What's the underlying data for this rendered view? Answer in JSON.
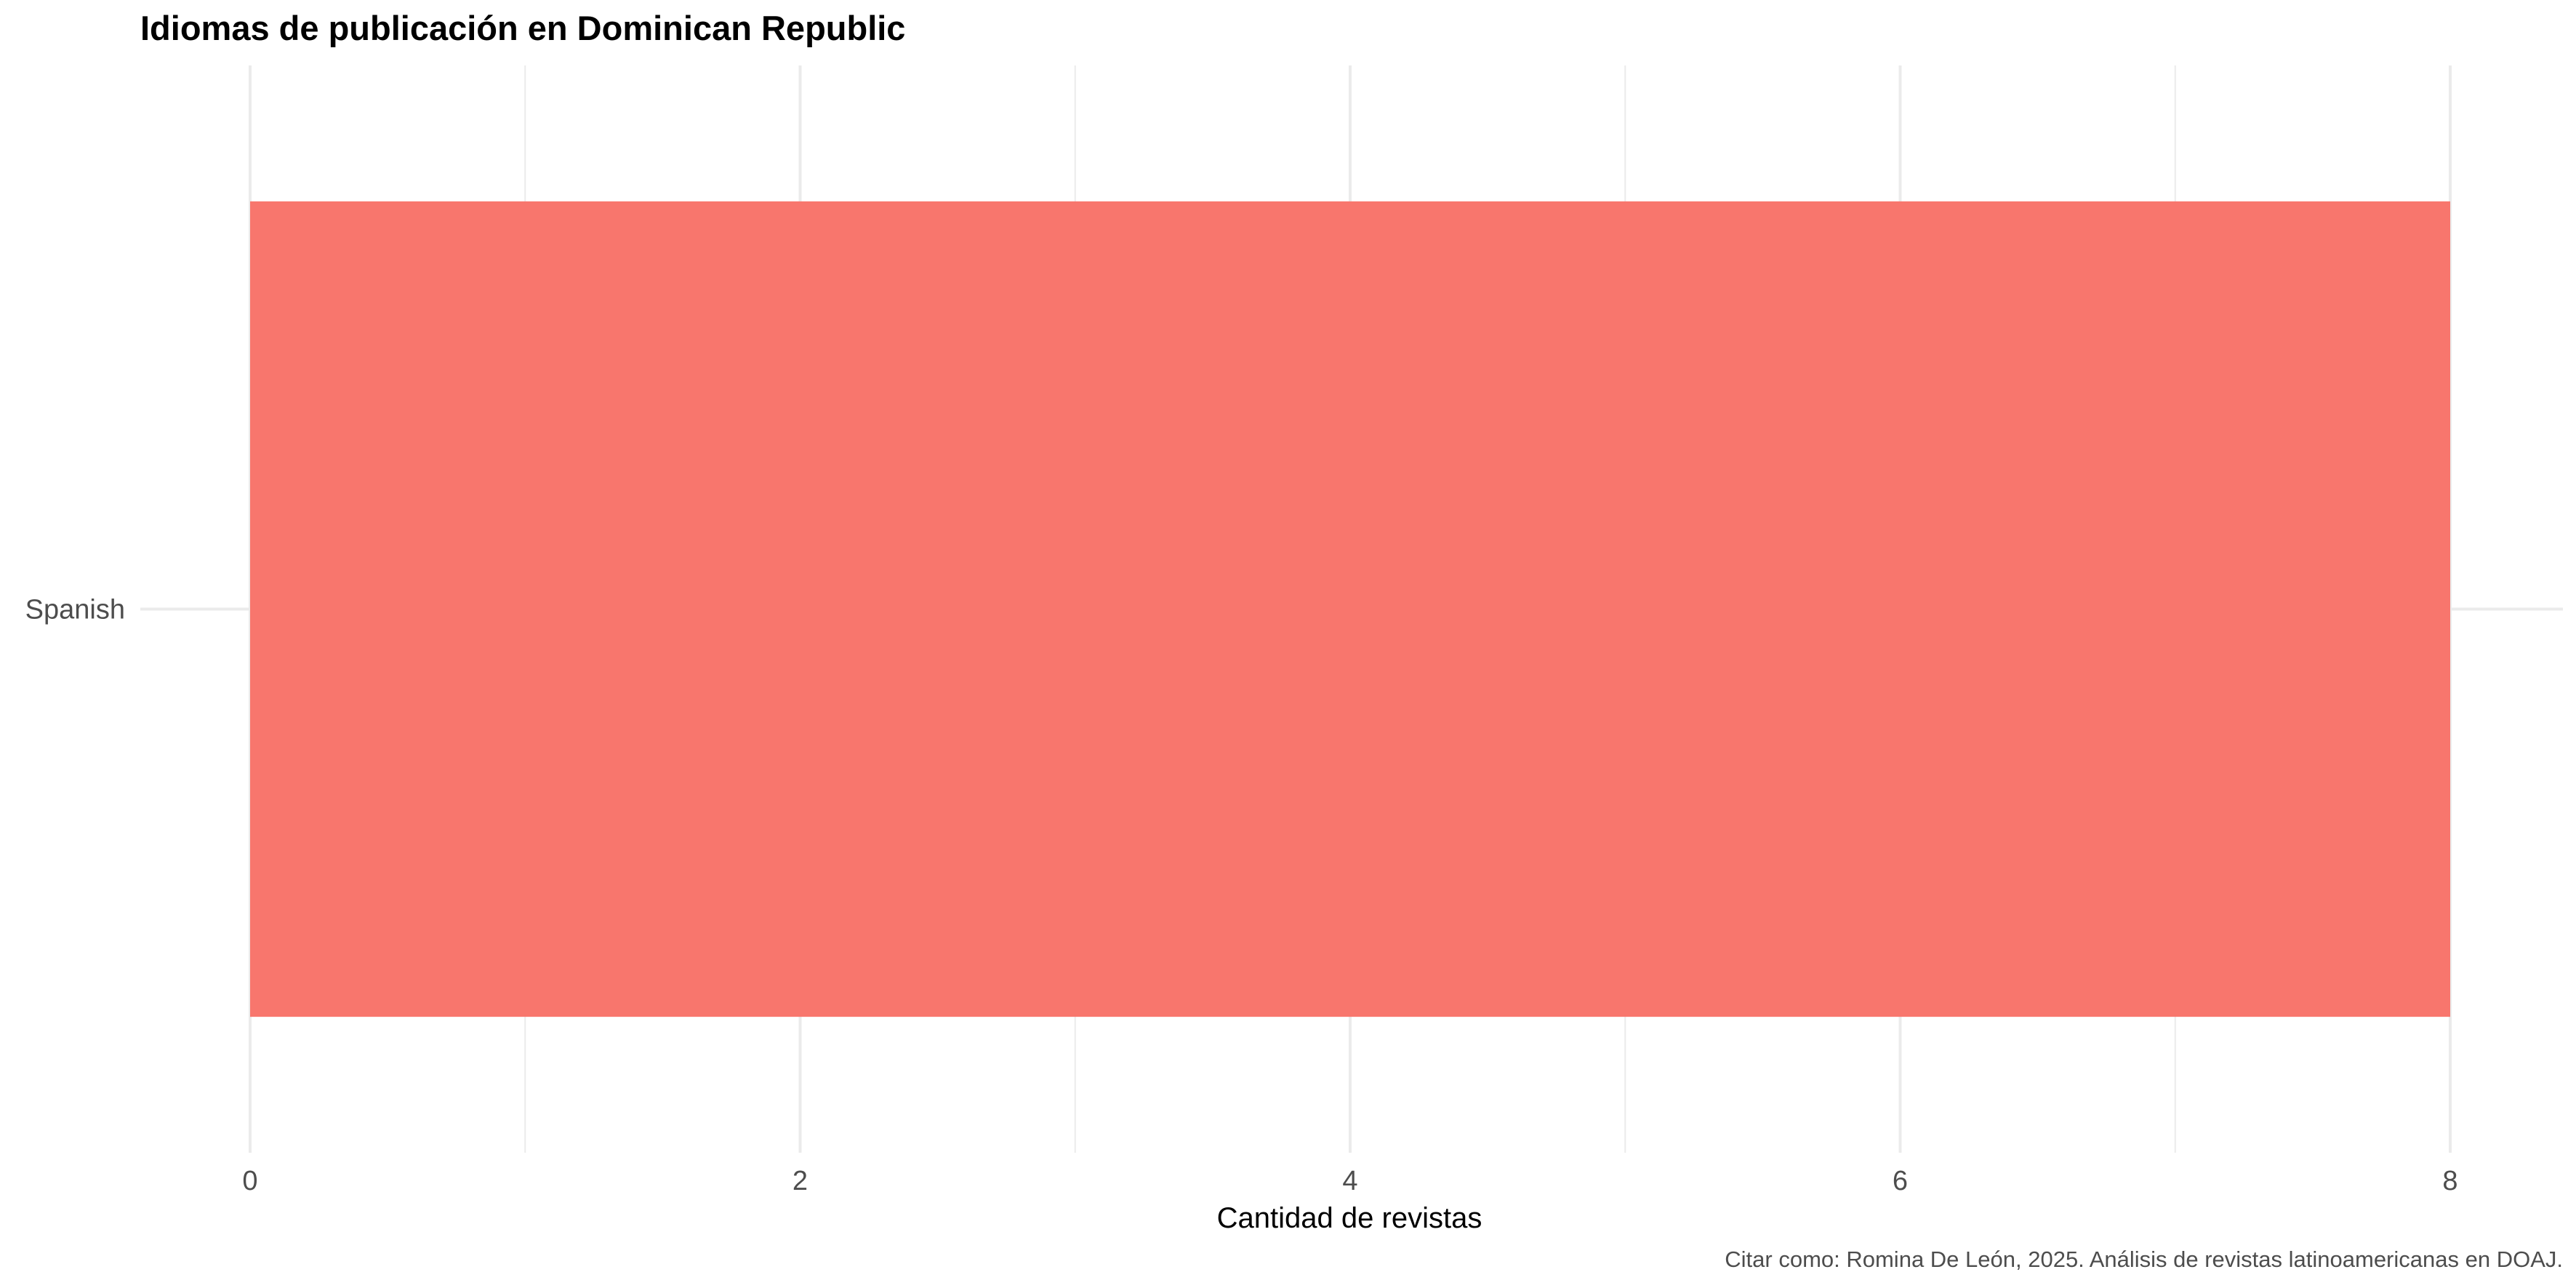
{
  "chart_data": {
    "type": "bar",
    "orientation": "horizontal",
    "title": "Idiomas de publicación en Dominican Republic",
    "xlabel": "Cantidad de revistas",
    "ylabel": "",
    "categories": [
      "Spanish"
    ],
    "values": [
      8
    ],
    "xlim": [
      0,
      8
    ],
    "x_ticks": [
      0,
      2,
      4,
      6,
      8
    ],
    "x_tick_labels": [
      "0",
      "2",
      "4",
      "6",
      "8"
    ],
    "grid": true,
    "legend": "none",
    "bar_color": "#f8766d",
    "caption": "Citar como: Romina De León, 2025. Análisis de revistas latinoamericanas en DOAJ."
  }
}
